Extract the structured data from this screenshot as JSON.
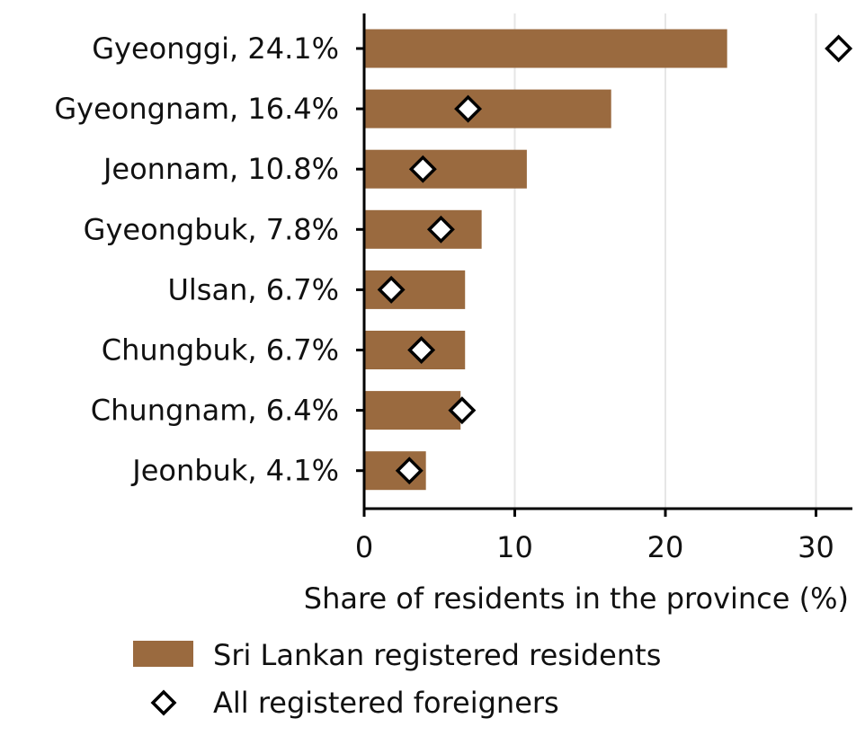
{
  "chart_data": {
    "type": "bar",
    "orientation": "horizontal",
    "categories": [
      "Gyeonggi, 24.1%",
      "Gyeongnam, 16.4%",
      "Jeonnam, 10.8%",
      "Gyeongbuk, 7.8%",
      "Ulsan, 6.7%",
      "Chungbuk, 6.7%",
      "Chungnam, 6.4%",
      "Jeonbuk, 4.1%"
    ],
    "series": [
      {
        "name": "Sri Lankan registered residents",
        "kind": "bar",
        "color": "#9a6a3f",
        "values": [
          24.1,
          16.4,
          10.8,
          7.8,
          6.7,
          6.7,
          6.4,
          4.1
        ]
      },
      {
        "name": "All registered foreigners",
        "kind": "marker",
        "marker": "diamond",
        "color": "#ffffff",
        "edge_color": "#000000",
        "values": [
          31.5,
          6.9,
          3.9,
          5.1,
          1.8,
          3.8,
          6.5,
          3.0
        ]
      }
    ],
    "xlabel": "Share of residents in the province (%)",
    "ylabel": "",
    "xlim": [
      0,
      32.5
    ],
    "xticks": [
      0,
      10,
      20,
      30
    ],
    "grid": "vertical",
    "grid_color": "#e6e6e6",
    "legend_position": "bottom"
  }
}
